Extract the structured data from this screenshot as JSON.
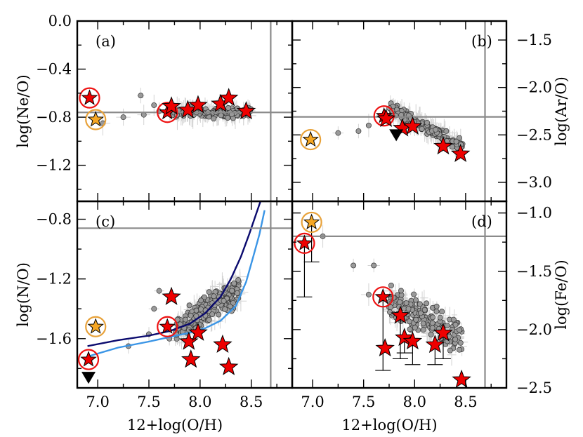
{
  "chart_data": [
    {
      "panel": "(a)",
      "type": "scatter",
      "xlabel": "",
      "ylabel": "log(Ne/O)",
      "xlim": [
        6.8,
        8.9
      ],
      "ylim": [
        -1.5,
        0.0
      ],
      "xticks": [],
      "yticks": [
        "0.0",
        "−0.4",
        "−0.8",
        "−1.2"
      ],
      "ytick_values": [
        0.0,
        -0.4,
        -0.8,
        -1.2
      ],
      "solar": {
        "x": 8.69,
        "y": -0.76
      },
      "series": [
        {
          "kind": "circled_red_star",
          "points": [
            [
              6.92,
              -0.64
            ],
            [
              7.68,
              -0.76
            ]
          ]
        },
        {
          "kind": "orange_star",
          "points": [
            [
              6.98,
              -0.82
            ]
          ]
        },
        {
          "kind": "red_star",
          "points": [
            [
              7.72,
              -0.71
            ],
            [
              7.88,
              -0.74
            ],
            [
              7.98,
              -0.7
            ],
            [
              8.2,
              -0.69
            ],
            [
              8.28,
              -0.64
            ],
            [
              8.45,
              -0.75
            ]
          ]
        }
      ]
    },
    {
      "panel": "(b)",
      "type": "scatter",
      "xlabel": "",
      "ylabel": "log(Ar/O)",
      "xlim": [
        6.8,
        8.9
      ],
      "ylim": [
        -3.2,
        -1.3
      ],
      "xticks": [],
      "yticks": [
        "−1.5",
        "−2.0",
        "−2.5",
        "−3.0"
      ],
      "ytick_values": [
        -1.5,
        -2.0,
        -2.5,
        -3.0
      ],
      "solar": {
        "x": 8.69,
        "y": -2.31
      },
      "series": [
        {
          "kind": "circled_red_star",
          "points": [
            [
              7.7,
              -2.3
            ]
          ]
        },
        {
          "kind": "orange_star",
          "points": [
            [
              6.98,
              -2.55
            ]
          ]
        },
        {
          "kind": "red_star",
          "points": [
            [
              7.72,
              -2.33
            ],
            [
              7.88,
              -2.43
            ],
            [
              7.98,
              -2.41
            ],
            [
              8.28,
              -2.62
            ],
            [
              8.45,
              -2.7
            ]
          ]
        },
        {
          "kind": "upper_limit",
          "points": [
            [
              7.82,
              -2.5
            ]
          ]
        }
      ]
    },
    {
      "panel": "(c)",
      "type": "scatter",
      "xlabel": "12+log(O/H)",
      "ylabel": "log(N/O)",
      "xlim": [
        6.8,
        8.9
      ],
      "ylim": [
        -1.93,
        -0.68
      ],
      "xticks": [
        "7.0",
        "7.5",
        "8.0",
        "8.5"
      ],
      "xtick_values": [
        7.0,
        7.5,
        8.0,
        8.5
      ],
      "yticks": [
        "−0.8",
        "−1.2",
        "−1.6"
      ],
      "ytick_values": [
        -0.8,
        -1.2,
        -1.6
      ],
      "solar": {
        "x": 8.69,
        "y": -0.86
      },
      "series": [
        {
          "kind": "circled_red_star",
          "points": [
            [
              6.91,
              -1.74
            ],
            [
              7.68,
              -1.52
            ]
          ]
        },
        {
          "kind": "orange_star",
          "points": [
            [
              6.98,
              -1.52
            ]
          ]
        },
        {
          "kind": "red_star",
          "points": [
            [
              7.72,
              -1.32
            ],
            [
              7.89,
              -1.62
            ],
            [
              7.91,
              -1.74
            ],
            [
              7.98,
              -1.56
            ],
            [
              8.22,
              -1.64
            ],
            [
              8.28,
              -1.79
            ]
          ]
        },
        {
          "kind": "upper_limit",
          "points": [
            [
              6.91,
              -1.86
            ]
          ]
        }
      ],
      "model_tracks": [
        {
          "color": "#0a0a6e",
          "x": [
            6.9,
            7.2,
            7.5,
            7.7,
            7.9,
            8.05,
            8.2,
            8.3,
            8.4,
            8.48,
            8.55,
            8.6
          ],
          "y": [
            -1.65,
            -1.61,
            -1.58,
            -1.55,
            -1.5,
            -1.43,
            -1.32,
            -1.2,
            -1.05,
            -0.9,
            -0.76,
            -0.66
          ]
        },
        {
          "color": "#3a95e6",
          "x": [
            6.9,
            7.2,
            7.5,
            7.7,
            7.9,
            8.05,
            8.2,
            8.35,
            8.45,
            8.52,
            8.58,
            8.63
          ],
          "y": [
            -1.72,
            -1.66,
            -1.62,
            -1.59,
            -1.56,
            -1.53,
            -1.48,
            -1.38,
            -1.22,
            -1.05,
            -0.9,
            -0.74
          ]
        }
      ]
    },
    {
      "panel": "(d)",
      "type": "scatter",
      "xlabel": "12+log(O/H)",
      "ylabel": "log(Fe/O)",
      "xlim": [
        6.8,
        8.9
      ],
      "ylim": [
        -2.5,
        -0.9
      ],
      "xticks": [
        "7.0",
        "7.5",
        "8.0",
        "8.5"
      ],
      "xtick_values": [
        7.0,
        7.5,
        8.0,
        8.5
      ],
      "yticks": [
        "−1.0",
        "−1.5",
        "−2.0",
        "−2.5"
      ],
      "ytick_values": [
        -1.0,
        -1.5,
        -2.0,
        -2.5
      ],
      "solar": {
        "x": 8.69,
        "y": -1.2
      },
      "series": [
        {
          "kind": "circled_red_star",
          "points": [
            [
              6.92,
              -1.26
            ],
            [
              7.69,
              -1.72
            ]
          ]
        },
        {
          "kind": "orange_star",
          "points": [
            [
              6.99,
              -1.08
            ]
          ]
        },
        {
          "kind": "red_star",
          "points": [
            [
              7.71,
              -2.16
            ],
            [
              7.86,
              -1.88
            ],
            [
              7.9,
              -2.07
            ],
            [
              7.98,
              -2.1
            ],
            [
              8.2,
              -2.13
            ],
            [
              8.28,
              -2.03
            ],
            [
              8.46,
              -2.43
            ]
          ]
        }
      ]
    }
  ]
}
